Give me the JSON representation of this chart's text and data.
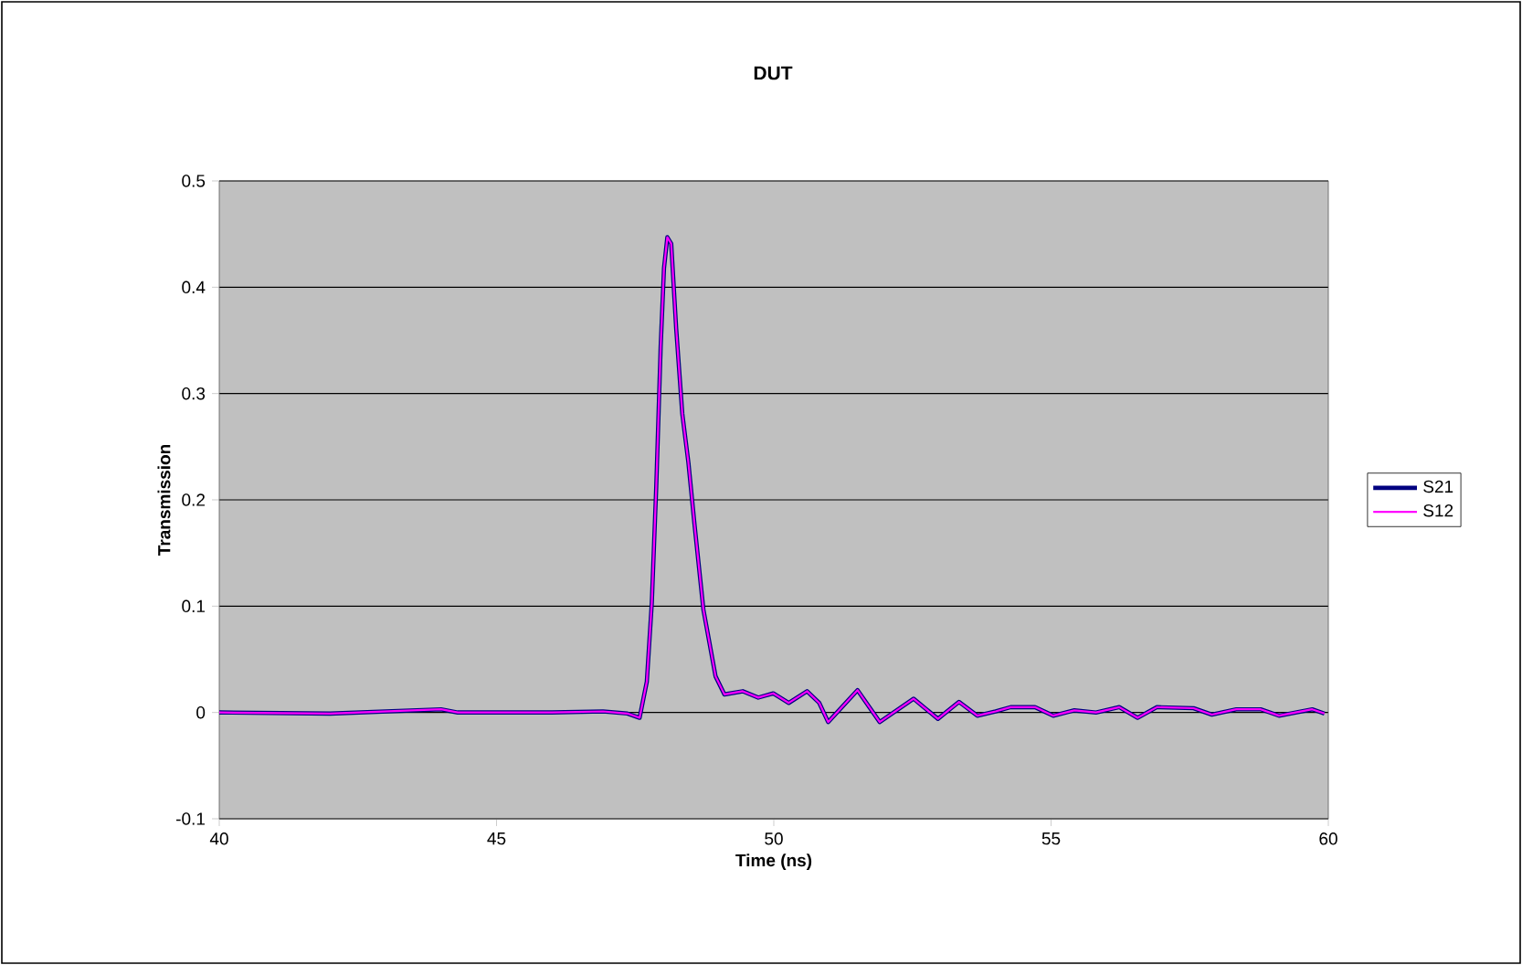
{
  "chart_data": {
    "type": "line",
    "title": "DUT",
    "xlabel": "Time (ns)",
    "ylabel": "Transmission",
    "x": [
      40,
      42,
      44,
      44.3,
      46,
      46.92,
      47.36,
      47.58,
      47.71,
      47.8,
      47.88,
      47.96,
      48.02,
      48.08,
      48.15,
      48.24,
      48.35,
      48.46,
      48.57,
      48.73,
      48.95,
      49.11,
      49.44,
      49.72,
      49.99,
      50.27,
      50.6,
      50.82,
      50.98,
      51.51,
      51.91,
      52.52,
      52.96,
      53.34,
      53.67,
      54.0,
      54.27,
      54.71,
      55.04,
      55.42,
      55.81,
      56.23,
      56.56,
      56.91,
      57.57,
      57.9,
      58.34,
      58.78,
      59.11,
      59.71,
      59.93
    ],
    "series": [
      {
        "name": "S21",
        "color": "#000080",
        "values": [
          0,
          -0.001,
          0.003,
          0,
          0,
          0.001,
          -0.001,
          -0.005,
          0.029,
          0.103,
          0.212,
          0.344,
          0.418,
          0.447,
          0.441,
          0.361,
          0.281,
          0.235,
          0.177,
          0.097,
          0.034,
          0.017,
          0.02,
          0.014,
          0.018,
          0.009,
          0.02,
          0.009,
          -0.009,
          0.021,
          -0.009,
          0.013,
          -0.006,
          0.01,
          -0.003,
          0.001,
          0.005,
          0.005,
          -0.003,
          0.002,
          0,
          0.005,
          -0.005,
          0.005,
          0.004,
          -0.002,
          0.003,
          0.003,
          -0.003,
          0.003,
          -0.001
        ]
      },
      {
        "name": "S12",
        "color": "#ff00ff",
        "values": [
          0,
          -0.001,
          0.003,
          0,
          0,
          0.001,
          -0.001,
          -0.005,
          0.029,
          0.103,
          0.212,
          0.344,
          0.418,
          0.447,
          0.441,
          0.361,
          0.281,
          0.235,
          0.177,
          0.097,
          0.034,
          0.017,
          0.02,
          0.014,
          0.018,
          0.009,
          0.02,
          0.009,
          -0.009,
          0.021,
          -0.009,
          0.013,
          -0.006,
          0.01,
          -0.003,
          0.001,
          0.005,
          0.005,
          -0.003,
          0.002,
          0,
          0.005,
          -0.005,
          0.005,
          0.004,
          -0.002,
          0.003,
          0.003,
          -0.003,
          0.003,
          -0.001
        ]
      }
    ],
    "xlim": [
      40,
      60
    ],
    "xticks": [
      40,
      45,
      50,
      55,
      60
    ],
    "ylim": [
      -0.1,
      0.5
    ],
    "yticks": [
      -0.1,
      0,
      0.1,
      0.2,
      0.3,
      0.4,
      0.5
    ],
    "grid": "y",
    "legend": "right",
    "marker": "none",
    "line_style": "solid"
  }
}
